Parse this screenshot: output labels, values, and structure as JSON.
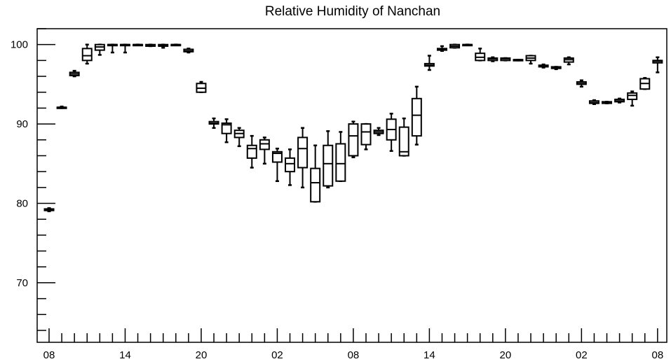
{
  "chart_data": {
    "type": "box",
    "title": "Relative Humidity of Nanchan",
    "xlabel": "",
    "ylabel": "",
    "ylim": [
      62.5,
      102
    ],
    "y_ticks": [
      70,
      80,
      90,
      100
    ],
    "x_tick_labels": [
      "08",
      "14",
      "20",
      "02",
      "08",
      "14",
      "20",
      "02",
      "08"
    ],
    "x_tick_hours": [
      0,
      6,
      12,
      18,
      24,
      30,
      36,
      42,
      48
    ],
    "grid": false,
    "legend": "none",
    "boxes": [
      {
        "hour": 0,
        "min": 79.0,
        "q1": 79.1,
        "median": 79.2,
        "q3": 79.3,
        "max": 79.4
      },
      {
        "hour": 1,
        "min": 92.0,
        "q1": 92.0,
        "median": 92.1,
        "q3": 92.1,
        "max": 92.2
      },
      {
        "hour": 2,
        "min": 96.0,
        "q1": 96.1,
        "median": 96.3,
        "q3": 96.5,
        "max": 96.7
      },
      {
        "hour": 3,
        "min": 97.6,
        "q1": 98.0,
        "median": 98.6,
        "q3": 99.5,
        "max": 100.0
      },
      {
        "hour": 4,
        "min": 98.7,
        "q1": 99.3,
        "median": 99.7,
        "q3": 100.0,
        "max": 100.0
      },
      {
        "hour": 5,
        "min": 99.0,
        "q1": 100.0,
        "median": 100.0,
        "q3": 100.0,
        "max": 100.0
      },
      {
        "hour": 6,
        "min": 99.0,
        "q1": 100.0,
        "median": 100.0,
        "q3": 100.0,
        "max": 100.0
      },
      {
        "hour": 7,
        "min": 100.0,
        "q1": 100.0,
        "median": 100.0,
        "q3": 100.0,
        "max": 100.0
      },
      {
        "hour": 8,
        "min": 99.8,
        "q1": 99.8,
        "median": 99.9,
        "q3": 100.0,
        "max": 100.0
      },
      {
        "hour": 9,
        "min": 99.6,
        "q1": 99.8,
        "median": 99.9,
        "q3": 100.0,
        "max": 100.0
      },
      {
        "hour": 10,
        "min": 100.0,
        "q1": 100.0,
        "median": 100.0,
        "q3": 100.0,
        "max": 100.0
      },
      {
        "hour": 11,
        "min": 99.0,
        "q1": 99.1,
        "median": 99.2,
        "q3": 99.4,
        "max": 99.5
      },
      {
        "hour": 12,
        "min": 94.0,
        "q1": 94.0,
        "median": 94.5,
        "q3": 95.1,
        "max": 95.3
      },
      {
        "hour": 13,
        "min": 89.5,
        "q1": 90.0,
        "median": 90.1,
        "q3": 90.3,
        "max": 90.7
      },
      {
        "hour": 14,
        "min": 87.7,
        "q1": 88.8,
        "median": 89.9,
        "q3": 90.1,
        "max": 90.6
      },
      {
        "hour": 15,
        "min": 87.2,
        "q1": 88.3,
        "median": 88.8,
        "q3": 89.2,
        "max": 89.5
      },
      {
        "hour": 16,
        "min": 84.5,
        "q1": 85.7,
        "median": 86.9,
        "q3": 87.3,
        "max": 88.5
      },
      {
        "hour": 17,
        "min": 85.0,
        "q1": 86.8,
        "median": 87.5,
        "q3": 88.0,
        "max": 88.3
      },
      {
        "hour": 18,
        "min": 82.8,
        "q1": 85.2,
        "median": 86.3,
        "q3": 86.5,
        "max": 86.9
      },
      {
        "hour": 19,
        "min": 82.3,
        "q1": 84.0,
        "median": 85.0,
        "q3": 85.7,
        "max": 86.8
      },
      {
        "hour": 20,
        "min": 82.0,
        "q1": 84.5,
        "median": 86.9,
        "q3": 88.3,
        "max": 89.5
      },
      {
        "hour": 21,
        "min": 80.2,
        "q1": 80.2,
        "median": 82.6,
        "q3": 84.4,
        "max": 87.3
      },
      {
        "hour": 22,
        "min": 82.0,
        "q1": 82.2,
        "median": 85.0,
        "q3": 87.3,
        "max": 89.1
      },
      {
        "hour": 23,
        "min": 82.8,
        "q1": 82.8,
        "median": 85.0,
        "q3": 87.5,
        "max": 89.0
      },
      {
        "hour": 24,
        "min": 85.8,
        "q1": 86.0,
        "median": 88.5,
        "q3": 90.0,
        "max": 90.3
      },
      {
        "hour": 25,
        "min": 86.8,
        "q1": 87.4,
        "median": 89.0,
        "q3": 90.0,
        "max": 90.0
      },
      {
        "hour": 26,
        "min": 88.6,
        "q1": 88.8,
        "median": 89.0,
        "q3": 89.2,
        "max": 89.5
      },
      {
        "hour": 27,
        "min": 86.6,
        "q1": 88.0,
        "median": 89.3,
        "q3": 90.6,
        "max": 91.3
      },
      {
        "hour": 28,
        "min": 86.0,
        "q1": 86.0,
        "median": 86.5,
        "q3": 89.6,
        "max": 90.7
      },
      {
        "hour": 29,
        "min": 87.4,
        "q1": 88.5,
        "median": 91.1,
        "q3": 93.2,
        "max": 94.7
      },
      {
        "hour": 30,
        "min": 96.8,
        "q1": 97.3,
        "median": 97.4,
        "q3": 97.6,
        "max": 98.6
      },
      {
        "hour": 31,
        "min": 99.2,
        "q1": 99.3,
        "median": 99.4,
        "q3": 99.5,
        "max": 99.8
      },
      {
        "hour": 32,
        "min": 99.6,
        "q1": 99.6,
        "median": 99.8,
        "q3": 100.0,
        "max": 100.0
      },
      {
        "hour": 33,
        "min": 100.0,
        "q1": 100.0,
        "median": 100.0,
        "q3": 100.0,
        "max": 100.0
      },
      {
        "hour": 34,
        "min": 98.0,
        "q1": 98.0,
        "median": 98.4,
        "q3": 98.9,
        "max": 99.5
      },
      {
        "hour": 35,
        "min": 97.9,
        "q1": 98.0,
        "median": 98.2,
        "q3": 98.3,
        "max": 98.4
      },
      {
        "hour": 36,
        "min": 98.0,
        "q1": 98.0,
        "median": 98.2,
        "q3": 98.3,
        "max": 98.3
      },
      {
        "hour": 37,
        "min": 98.0,
        "q1": 98.0,
        "median": 98.1,
        "q3": 98.1,
        "max": 98.1
      },
      {
        "hour": 38,
        "min": 97.6,
        "q1": 98.0,
        "median": 98.3,
        "q3": 98.6,
        "max": 98.6
      },
      {
        "hour": 39,
        "min": 97.1,
        "q1": 97.2,
        "median": 97.3,
        "q3": 97.4,
        "max": 97.5
      },
      {
        "hour": 40,
        "min": 96.9,
        "q1": 97.0,
        "median": 97.1,
        "q3": 97.2,
        "max": 97.2
      },
      {
        "hour": 41,
        "min": 97.5,
        "q1": 97.8,
        "median": 98.1,
        "q3": 98.3,
        "max": 98.4
      },
      {
        "hour": 42,
        "min": 94.7,
        "q1": 95.0,
        "median": 95.1,
        "q3": 95.3,
        "max": 95.5
      },
      {
        "hour": 43,
        "min": 92.5,
        "q1": 92.6,
        "median": 92.7,
        "q3": 92.9,
        "max": 93.0
      },
      {
        "hour": 44,
        "min": 92.6,
        "q1": 92.6,
        "median": 92.7,
        "q3": 92.8,
        "max": 92.8
      },
      {
        "hour": 45,
        "min": 92.7,
        "q1": 92.8,
        "median": 92.9,
        "q3": 93.1,
        "max": 93.2
      },
      {
        "hour": 46,
        "min": 92.3,
        "q1": 93.1,
        "median": 93.6,
        "q3": 93.9,
        "max": 94.1
      },
      {
        "hour": 47,
        "min": 94.4,
        "q1": 94.4,
        "median": 95.1,
        "q3": 95.7,
        "max": 95.8
      },
      {
        "hour": 48,
        "min": 96.5,
        "q1": 97.7,
        "median": 97.9,
        "q3": 98.0,
        "max": 98.4
      }
    ]
  }
}
